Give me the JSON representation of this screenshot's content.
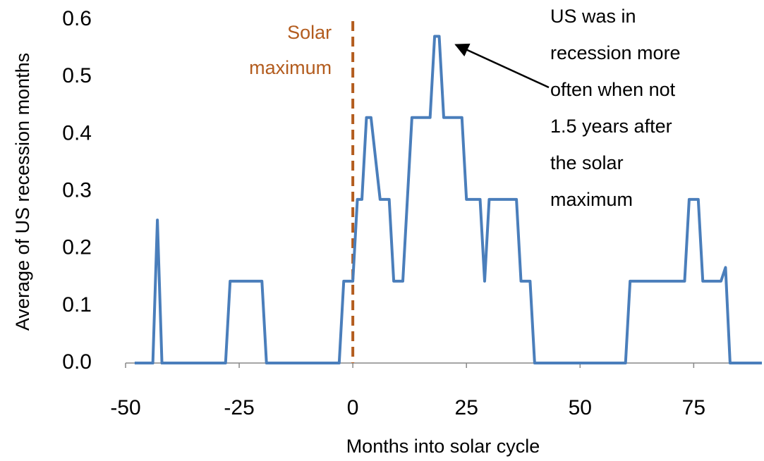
{
  "chart_data": {
    "type": "line",
    "xlabel": "Months into solar cycle",
    "ylabel": "Average of US recession months",
    "x": [
      -48,
      -44,
      -43,
      -42,
      -28,
      -27,
      -20,
      -19,
      -3,
      -2,
      0,
      1,
      2,
      3,
      4,
      6,
      8,
      9,
      11,
      13,
      17,
      18,
      19,
      20,
      24,
      25,
      28,
      29,
      30,
      36,
      37,
      39,
      40,
      60,
      61,
      73,
      74,
      76,
      77,
      81,
      82,
      83,
      90
    ],
    "series": [
      {
        "name": "Average of US recession months",
        "color": "#4a7ebb",
        "values": [
          0,
          0,
          0.25,
          0,
          0,
          0.143,
          0.143,
          0,
          0,
          0.143,
          0.143,
          0.286,
          0.286,
          0.429,
          0.429,
          0.286,
          0.286,
          0.143,
          0.143,
          0.429,
          0.429,
          0.571,
          0.571,
          0.429,
          0.429,
          0.286,
          0.286,
          0.143,
          0.286,
          0.286,
          0.143,
          0.143,
          0,
          0,
          0.143,
          0.143,
          0.286,
          0.286,
          0.143,
          0.143,
          0.167,
          0,
          0
        ]
      }
    ],
    "xlim": [
      -50,
      90
    ],
    "xticks": [
      -50,
      -25,
      0,
      25,
      50,
      75
    ],
    "ylim": [
      0,
      0.6
    ],
    "yticks": [
      {
        "value": 0,
        "label": "0.0"
      },
      0.1,
      0.2,
      0.3,
      0.4,
      0.5,
      0.6
    ],
    "vline": {
      "x": 0,
      "color": "#b35c1e",
      "label": [
        "Solar",
        "maximum"
      ]
    },
    "annotation": {
      "text": [
        "US was in",
        "recession more",
        "often when not",
        "1.5 years after",
        "the solar",
        "maximum"
      ],
      "x": 18,
      "y": 0.56
    }
  }
}
